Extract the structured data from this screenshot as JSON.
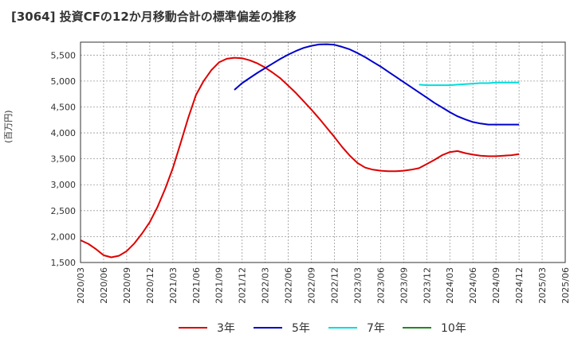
{
  "title": "[3064]  投資CFの12か月移動合計の標準偏差の推移",
  "chart_data": {
    "type": "line",
    "ylabel": "(百万円)",
    "ylim": [
      1500,
      5750
    ],
    "yticks": [
      1500,
      2000,
      2500,
      3000,
      3500,
      4000,
      4500,
      5000,
      5500
    ],
    "ytick_labels": [
      "1,500",
      "2,000",
      "2,500",
      "3,000",
      "3,500",
      "4,000",
      "4,500",
      "5,000",
      "5,500"
    ],
    "xticks": [
      "2020/03",
      "2020/06",
      "2020/09",
      "2020/12",
      "2021/03",
      "2021/06",
      "2021/09",
      "2021/12",
      "2022/03",
      "2022/06",
      "2022/09",
      "2022/12",
      "2023/03",
      "2023/06",
      "2023/09",
      "2023/12",
      "2024/03",
      "2024/06",
      "2024/09",
      "2024/12",
      "2025/03",
      "2025/06"
    ],
    "grid": true,
    "series": [
      {
        "name": "3年",
        "color": "#dd0000",
        "x": [
          "2020/03",
          "2020/04",
          "2020/05",
          "2020/06",
          "2020/07",
          "2020/08",
          "2020/09",
          "2020/10",
          "2020/11",
          "2020/12",
          "2021/01",
          "2021/02",
          "2021/03",
          "2021/04",
          "2021/05",
          "2021/06",
          "2021/07",
          "2021/08",
          "2021/09",
          "2021/10",
          "2021/11",
          "2021/12",
          "2022/01",
          "2022/02",
          "2022/03",
          "2022/04",
          "2022/05",
          "2022/06",
          "2022/07",
          "2022/08",
          "2022/09",
          "2022/10",
          "2022/11",
          "2022/12",
          "2023/01",
          "2023/02",
          "2023/03",
          "2023/04",
          "2023/05",
          "2023/06",
          "2023/07",
          "2023/08",
          "2023/09",
          "2023/10",
          "2023/11",
          "2023/12",
          "2024/01",
          "2024/02",
          "2024/03",
          "2024/04",
          "2024/05",
          "2024/06",
          "2024/07",
          "2024/08",
          "2024/09",
          "2024/10",
          "2024/11",
          "2024/12"
        ],
        "values": [
          1930,
          1860,
          1760,
          1640,
          1600,
          1630,
          1720,
          1870,
          2060,
          2280,
          2570,
          2920,
          3320,
          3800,
          4290,
          4730,
          5000,
          5210,
          5360,
          5430,
          5450,
          5440,
          5400,
          5340,
          5260,
          5160,
          5050,
          4910,
          4770,
          4610,
          4450,
          4280,
          4100,
          3920,
          3730,
          3560,
          3420,
          3330,
          3290,
          3270,
          3260,
          3260,
          3270,
          3290,
          3320,
          3400,
          3480,
          3570,
          3630,
          3650,
          3610,
          3580,
          3560,
          3550,
          3550,
          3560,
          3570,
          3590
        ]
      },
      {
        "name": "5年",
        "color": "#0000cc",
        "x": [
          "2021/11",
          "2021/12",
          "2022/01",
          "2022/02",
          "2022/03",
          "2022/04",
          "2022/05",
          "2022/06",
          "2022/07",
          "2022/08",
          "2022/09",
          "2022/10",
          "2022/11",
          "2022/12",
          "2023/01",
          "2023/02",
          "2023/03",
          "2023/04",
          "2023/05",
          "2023/06",
          "2023/07",
          "2023/08",
          "2023/09",
          "2023/10",
          "2023/11",
          "2023/12",
          "2024/01",
          "2024/02",
          "2024/03",
          "2024/04",
          "2024/05",
          "2024/06",
          "2024/07",
          "2024/08",
          "2024/09",
          "2024/10",
          "2024/11",
          "2024/12"
        ],
        "values": [
          4830,
          4960,
          5060,
          5160,
          5250,
          5340,
          5430,
          5510,
          5580,
          5640,
          5680,
          5705,
          5710,
          5700,
          5660,
          5610,
          5540,
          5460,
          5370,
          5280,
          5180,
          5080,
          4980,
          4880,
          4780,
          4680,
          4580,
          4490,
          4400,
          4320,
          4260,
          4210,
          4180,
          4160,
          4160,
          4160,
          4160,
          4160
        ]
      },
      {
        "name": "7年",
        "color": "#00dddd",
        "x": [
          "2023/11",
          "2023/12",
          "2024/01",
          "2024/02",
          "2024/03",
          "2024/04",
          "2024/05",
          "2024/06",
          "2024/07",
          "2024/08",
          "2024/09",
          "2024/10",
          "2024/11",
          "2024/12"
        ],
        "values": [
          4930,
          4920,
          4920,
          4920,
          4920,
          4930,
          4940,
          4950,
          4960,
          4960,
          4970,
          4970,
          4970,
          4970
        ]
      },
      {
        "name": "10年",
        "color": "#228822",
        "x": [],
        "values": []
      }
    ],
    "legend_position": "bottom"
  }
}
